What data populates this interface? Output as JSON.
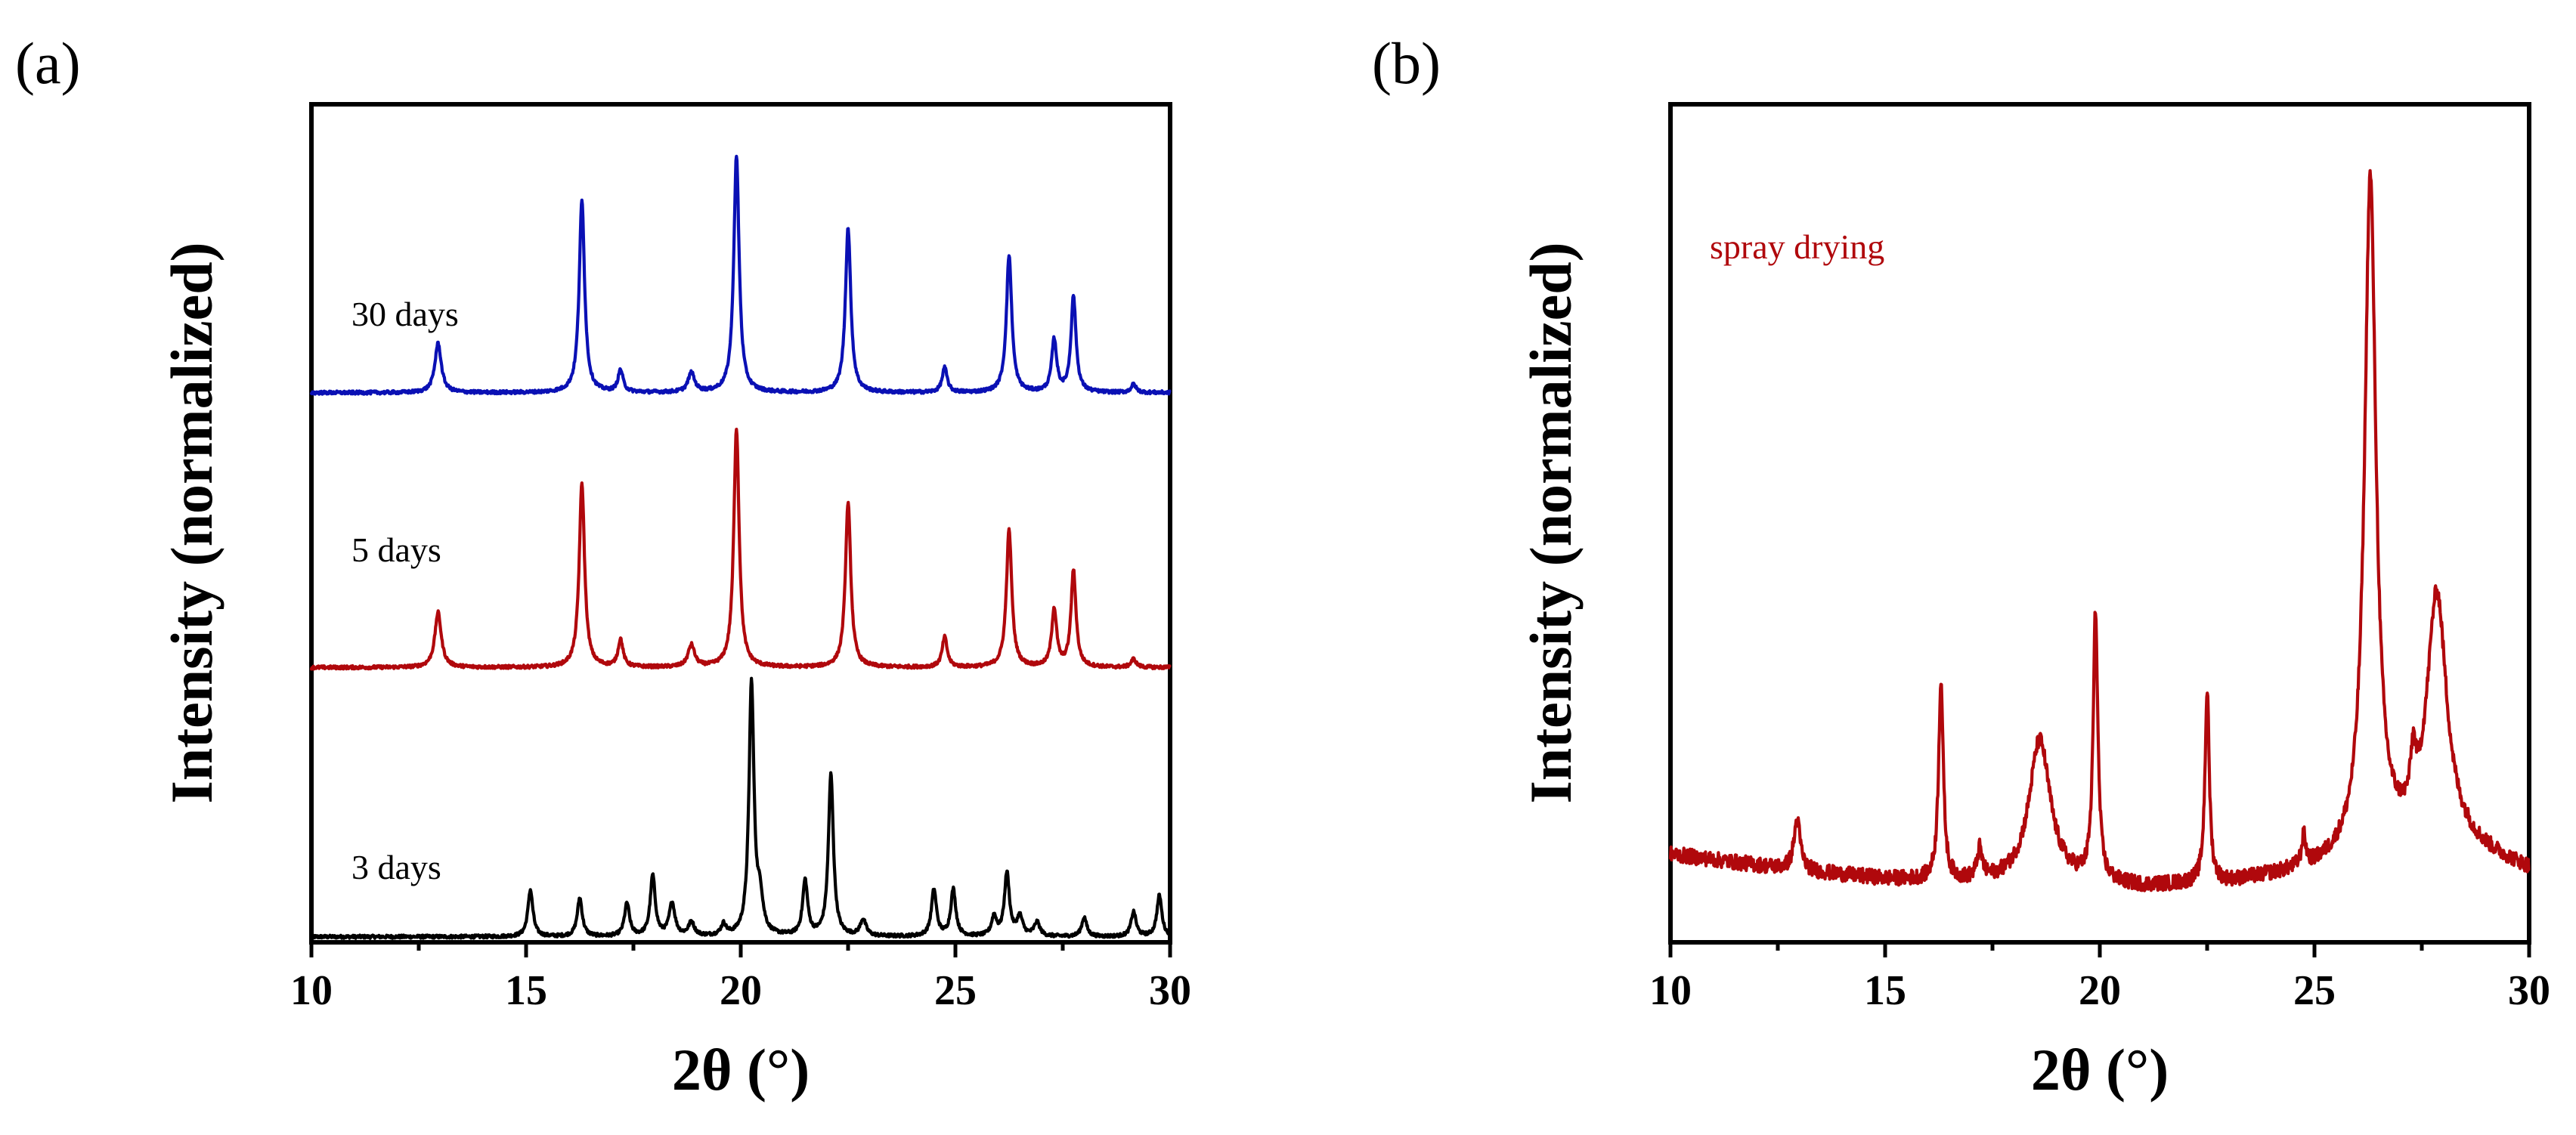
{
  "figure": {
    "panel_a_label": "(a)",
    "panel_b_label": "(b)"
  },
  "colors": {
    "blue": "#0a10b4",
    "red": "#b0080c",
    "black": "#000000"
  },
  "chart_data": [
    {
      "type": "line",
      "panel": "(a)",
      "title": "",
      "xlabel": "2θ (°)",
      "ylabel": "Intensity (normalized)",
      "xlim": [
        10,
        30
      ],
      "xticks": [
        10,
        15,
        20,
        25,
        30
      ],
      "ylim": [
        0,
        3.05
      ],
      "grid": false,
      "legend": "none (inline series labels on left)",
      "series": [
        {
          "name": "3 days",
          "color": "#000000",
          "baseline": 0.02,
          "noise": 0.006,
          "peaks": [
            {
              "x": 15.1,
              "h": 0.17,
              "w": 0.07
            },
            {
              "x": 16.25,
              "h": 0.14,
              "w": 0.07
            },
            {
              "x": 17.35,
              "h": 0.12,
              "w": 0.07
            },
            {
              "x": 17.95,
              "h": 0.22,
              "w": 0.07
            },
            {
              "x": 18.4,
              "h": 0.12,
              "w": 0.08
            },
            {
              "x": 18.85,
              "h": 0.05,
              "w": 0.08
            },
            {
              "x": 19.6,
              "h": 0.04,
              "w": 0.07
            },
            {
              "x": 20.25,
              "h": 0.92,
              "w": 0.07
            },
            {
              "x": 20.45,
              "h": 0.12,
              "w": 0.08
            },
            {
              "x": 21.5,
              "h": 0.2,
              "w": 0.07
            },
            {
              "x": 22.1,
              "h": 0.59,
              "w": 0.07
            },
            {
              "x": 22.85,
              "h": 0.06,
              "w": 0.08
            },
            {
              "x": 24.5,
              "h": 0.17,
              "w": 0.07
            },
            {
              "x": 24.95,
              "h": 0.17,
              "w": 0.07
            },
            {
              "x": 25.9,
              "h": 0.07,
              "w": 0.07
            },
            {
              "x": 26.2,
              "h": 0.23,
              "w": 0.07
            },
            {
              "x": 26.5,
              "h": 0.07,
              "w": 0.08
            },
            {
              "x": 26.9,
              "h": 0.05,
              "w": 0.08
            },
            {
              "x": 28.0,
              "h": 0.07,
              "w": 0.07
            },
            {
              "x": 29.15,
              "h": 0.09,
              "w": 0.07
            },
            {
              "x": 29.75,
              "h": 0.15,
              "w": 0.07
            }
          ]
        },
        {
          "name": "5 days",
          "color": "#b0080c",
          "baseline": 1.0,
          "noise": 0.006,
          "peaks": [
            {
              "x": 12.95,
              "h": 0.2,
              "w": 0.09
            },
            {
              "x": 16.3,
              "h": 0.67,
              "w": 0.075
            },
            {
              "x": 17.2,
              "h": 0.1,
              "w": 0.07
            },
            {
              "x": 18.85,
              "h": 0.08,
              "w": 0.09
            },
            {
              "x": 19.9,
              "h": 0.87,
              "w": 0.075
            },
            {
              "x": 22.5,
              "h": 0.6,
              "w": 0.075
            },
            {
              "x": 24.75,
              "h": 0.11,
              "w": 0.07
            },
            {
              "x": 26.25,
              "h": 0.5,
              "w": 0.075
            },
            {
              "x": 27.3,
              "h": 0.21,
              "w": 0.07
            },
            {
              "x": 27.75,
              "h": 0.35,
              "w": 0.07
            },
            {
              "x": 29.15,
              "h": 0.03,
              "w": 0.07
            }
          ]
        },
        {
          "name": "30 days",
          "color": "#0a10b4",
          "baseline": 2.0,
          "noise": 0.006,
          "peaks": [
            {
              "x": 12.95,
              "h": 0.18,
              "w": 0.09
            },
            {
              "x": 16.3,
              "h": 0.7,
              "w": 0.075
            },
            {
              "x": 17.2,
              "h": 0.08,
              "w": 0.07
            },
            {
              "x": 18.85,
              "h": 0.07,
              "w": 0.09
            },
            {
              "x": 19.9,
              "h": 0.86,
              "w": 0.075
            },
            {
              "x": 22.5,
              "h": 0.6,
              "w": 0.075
            },
            {
              "x": 24.75,
              "h": 0.09,
              "w": 0.07
            },
            {
              "x": 26.25,
              "h": 0.5,
              "w": 0.075
            },
            {
              "x": 27.3,
              "h": 0.19,
              "w": 0.07
            },
            {
              "x": 27.75,
              "h": 0.35,
              "w": 0.07
            },
            {
              "x": 29.15,
              "h": 0.03,
              "w": 0.07
            }
          ]
        }
      ]
    },
    {
      "type": "line",
      "panel": "(b)",
      "title": "",
      "xlabel": "2θ (°)",
      "ylabel": "Intensity (normalized)",
      "xlim": [
        10,
        30
      ],
      "xticks": [
        10,
        15,
        20,
        25,
        30
      ],
      "ylim": [
        0,
        1.0
      ],
      "grid": false,
      "legend": "none (inline label top-left)",
      "series": [
        {
          "name": "spray drying",
          "color": "#b0080c",
          "background": [
            [
              10,
              0.105
            ],
            [
              13,
              0.085
            ],
            [
              15,
              0.075
            ],
            [
              17,
              0.07
            ],
            [
              19,
              0.07
            ],
            [
              21,
              0.065
            ],
            [
              23,
              0.07
            ],
            [
              25,
              0.085
            ],
            [
              26.5,
              0.11
            ],
            [
              28.5,
              0.11
            ],
            [
              30,
              0.085
            ]
          ],
          "noise": 0.009,
          "peaks": [
            {
              "x": 12.95,
              "h": 0.06,
              "w": 0.09
            },
            {
              "x": 16.3,
              "h": 0.24,
              "w": 0.065
            },
            {
              "x": 17.2,
              "h": 0.035,
              "w": 0.07
            },
            {
              "x": 18.6,
              "h": 0.17,
              "w": 0.3
            },
            {
              "x": 19.9,
              "h": 0.32,
              "w": 0.065
            },
            {
              "x": 22.5,
              "h": 0.23,
              "w": 0.06
            },
            {
              "x": 24.75,
              "h": 0.035,
              "w": 0.06
            },
            {
              "x": 26.3,
              "h": 0.8,
              "w": 0.16
            },
            {
              "x": 27.3,
              "h": 0.06,
              "w": 0.07
            },
            {
              "x": 27.85,
              "h": 0.3,
              "w": 0.28
            }
          ]
        }
      ]
    }
  ]
}
